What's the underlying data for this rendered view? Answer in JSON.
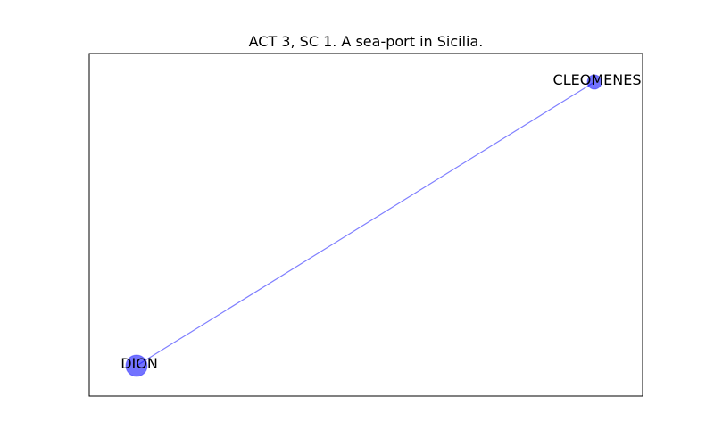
{
  "title": "ACT 3, SC 1. A sea-port in Sicilia.",
  "colors": {
    "node": "#0000ff",
    "edge": "#0000ff",
    "axes": "#000000"
  },
  "graph": {
    "nodes": [
      {
        "id": "dion",
        "label": "DION",
        "size": "large"
      },
      {
        "id": "cleomenes",
        "label": "CLEOMENES",
        "size": "small"
      }
    ],
    "edges": [
      {
        "source": "dion",
        "target": "cleomenes"
      }
    ]
  }
}
